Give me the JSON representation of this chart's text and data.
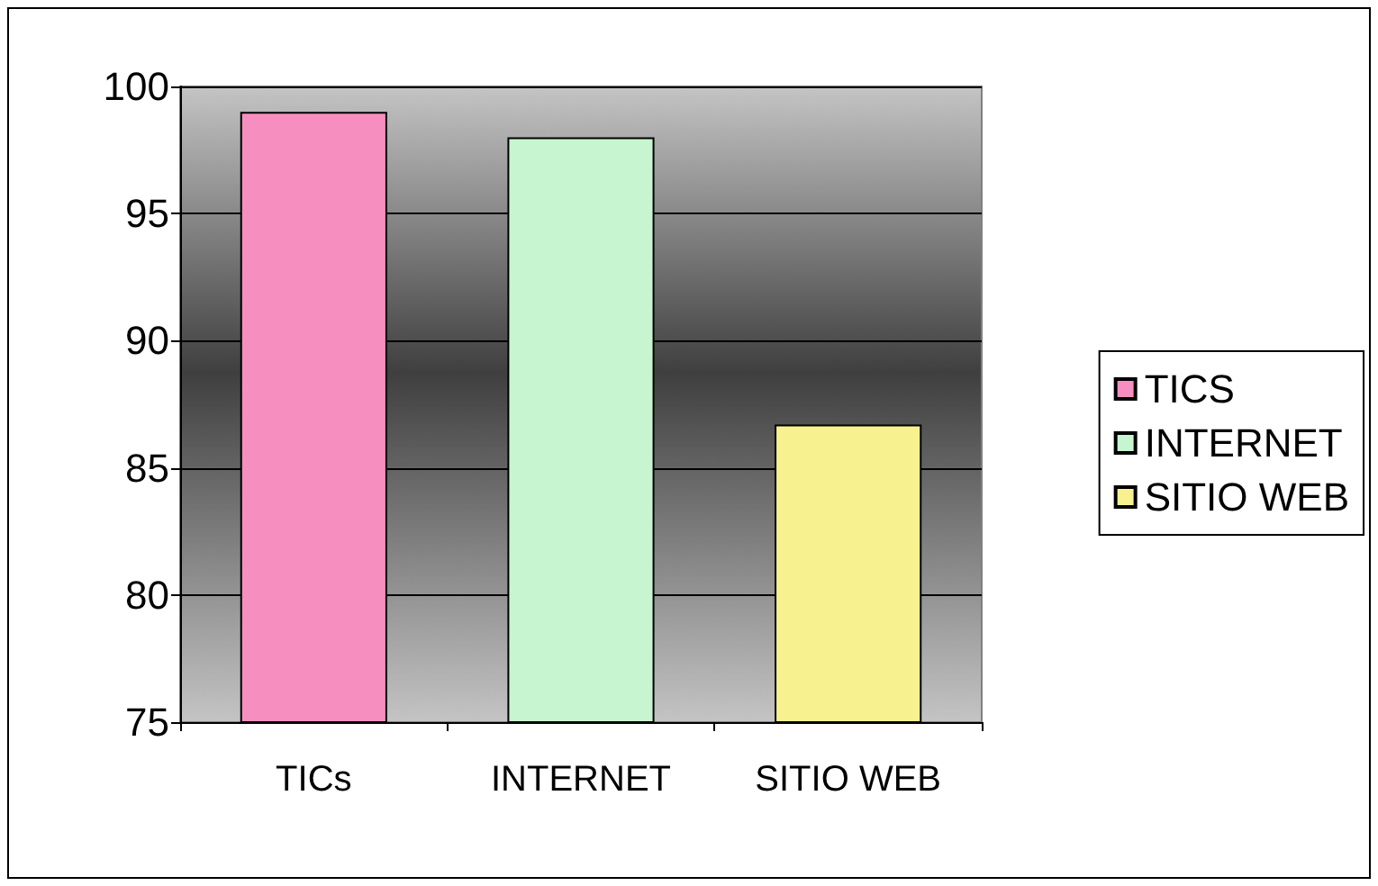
{
  "chart_data": {
    "type": "bar",
    "categories": [
      "TICs",
      "INTERNET",
      "SITIO WEB"
    ],
    "series": [
      {
        "name": "TICS",
        "color": "#f68fc0",
        "values": [
          99,
          null,
          null
        ]
      },
      {
        "name": "INTERNET",
        "color": "#c6f5cf",
        "values": [
          null,
          98,
          null
        ]
      },
      {
        "name": "SITIO WEB",
        "color": "#f7f28f",
        "values": [
          null,
          null,
          86.7
        ]
      }
    ],
    "ylim": [
      75,
      100
    ],
    "yticks": [
      75,
      80,
      85,
      90,
      95,
      100
    ],
    "grid": "y",
    "legend": "right"
  }
}
